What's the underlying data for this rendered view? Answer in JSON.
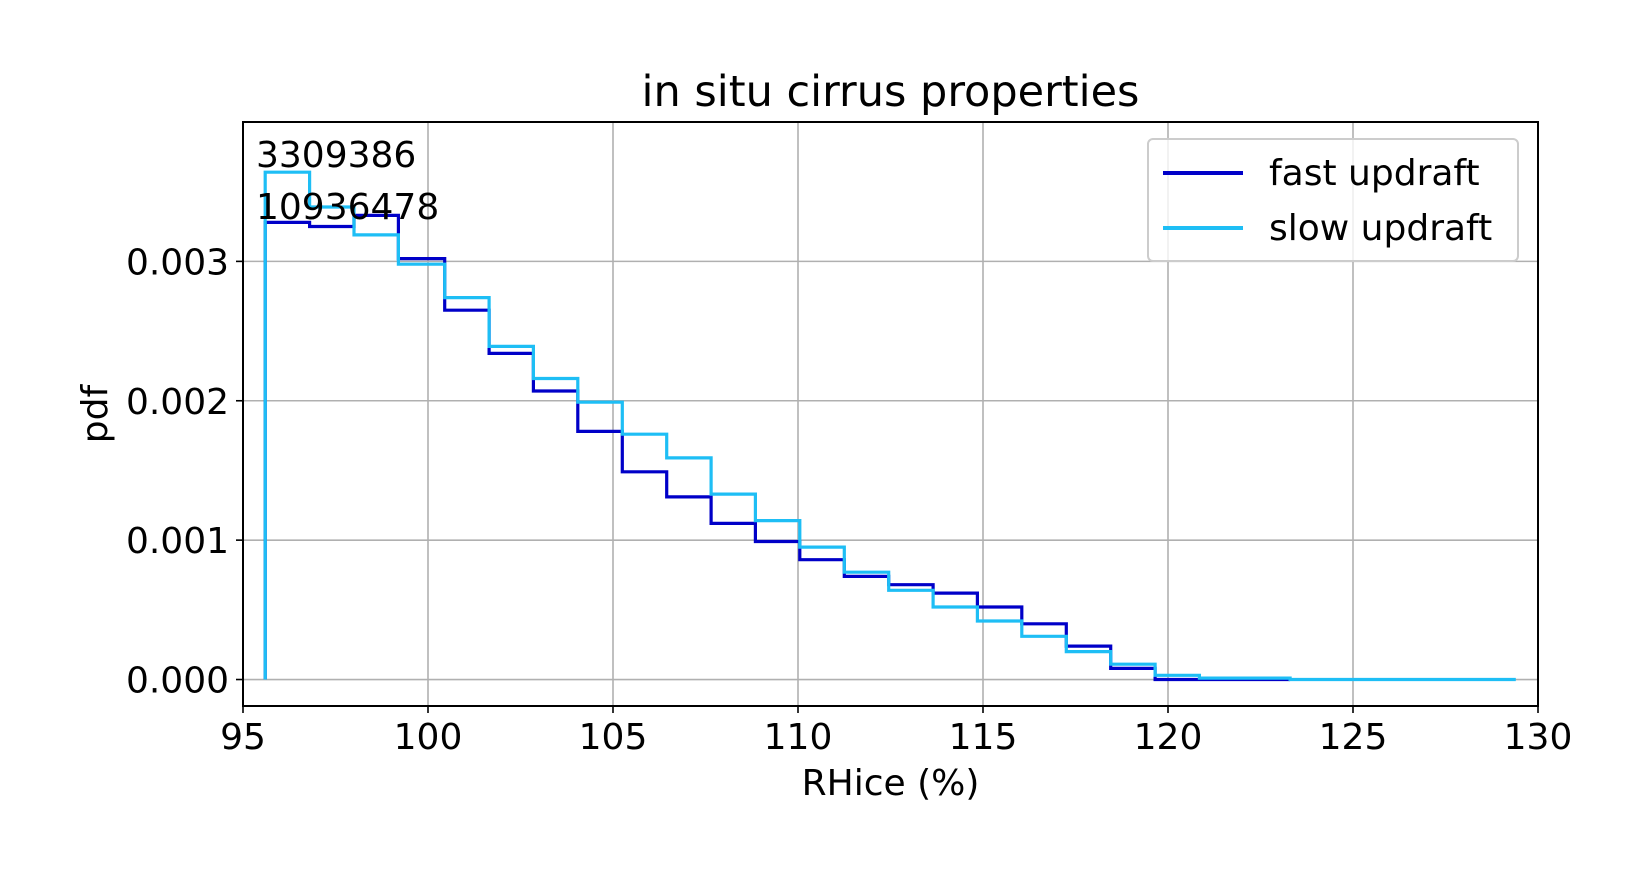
{
  "chart_data": {
    "type": "line",
    "title": "in situ cirrus properties",
    "xlabel": "RHice (%)",
    "ylabel": "pdf",
    "xlim": [
      95,
      130
    ],
    "ylim": [
      -0.00019,
      0.004
    ],
    "xticks": [
      95,
      100,
      105,
      110,
      115,
      120,
      125,
      130
    ],
    "yticks": [
      {
        "value": 0.0,
        "label": "0.000"
      },
      {
        "value": 0.001,
        "label": "0.001"
      },
      {
        "value": 0.002,
        "label": "0.002"
      },
      {
        "value": 0.003,
        "label": "0.003"
      }
    ],
    "grid": true,
    "legend_position": "top-right",
    "step_style": "histogram-steps",
    "annotations": [
      "3309386",
      "10936478"
    ],
    "series": [
      {
        "name": "fast updraft",
        "color": "#0000c8",
        "bin_edges": [
          95.6,
          96.8,
          98.0,
          99.2,
          100.45,
          101.65,
          102.85,
          104.05,
          105.25,
          106.45,
          107.65,
          108.85,
          110.05,
          111.25,
          112.45,
          113.65,
          114.85,
          116.05,
          117.25,
          118.45,
          119.65,
          120.85,
          123.3
        ],
        "values": [
          0.00328,
          0.00325,
          0.00333,
          0.00302,
          0.00265,
          0.00234,
          0.00207,
          0.00178,
          0.00149,
          0.00131,
          0.00112,
          0.00099,
          0.00086,
          0.00074,
          0.00068,
          0.00062,
          0.00052,
          0.0004,
          0.00024,
          8e-05,
          0.0,
          0.0
        ]
      },
      {
        "name": "slow updraft",
        "color": "#1ebef5",
        "bin_edges": [
          95.6,
          96.8,
          98.0,
          99.2,
          100.45,
          101.65,
          102.85,
          104.05,
          105.25,
          106.45,
          107.65,
          108.85,
          110.05,
          111.25,
          112.45,
          113.65,
          114.85,
          116.05,
          117.25,
          118.45,
          119.65,
          120.85,
          123.3,
          129.4
        ],
        "values": [
          0.00364,
          0.00339,
          0.00319,
          0.00298,
          0.00274,
          0.00239,
          0.00216,
          0.00199,
          0.00176,
          0.00159,
          0.00133,
          0.00114,
          0.00095,
          0.00077,
          0.00064,
          0.00052,
          0.00042,
          0.00031,
          0.0002,
          0.00011,
          3e-05,
          1e-05,
          0.0
        ]
      }
    ]
  }
}
